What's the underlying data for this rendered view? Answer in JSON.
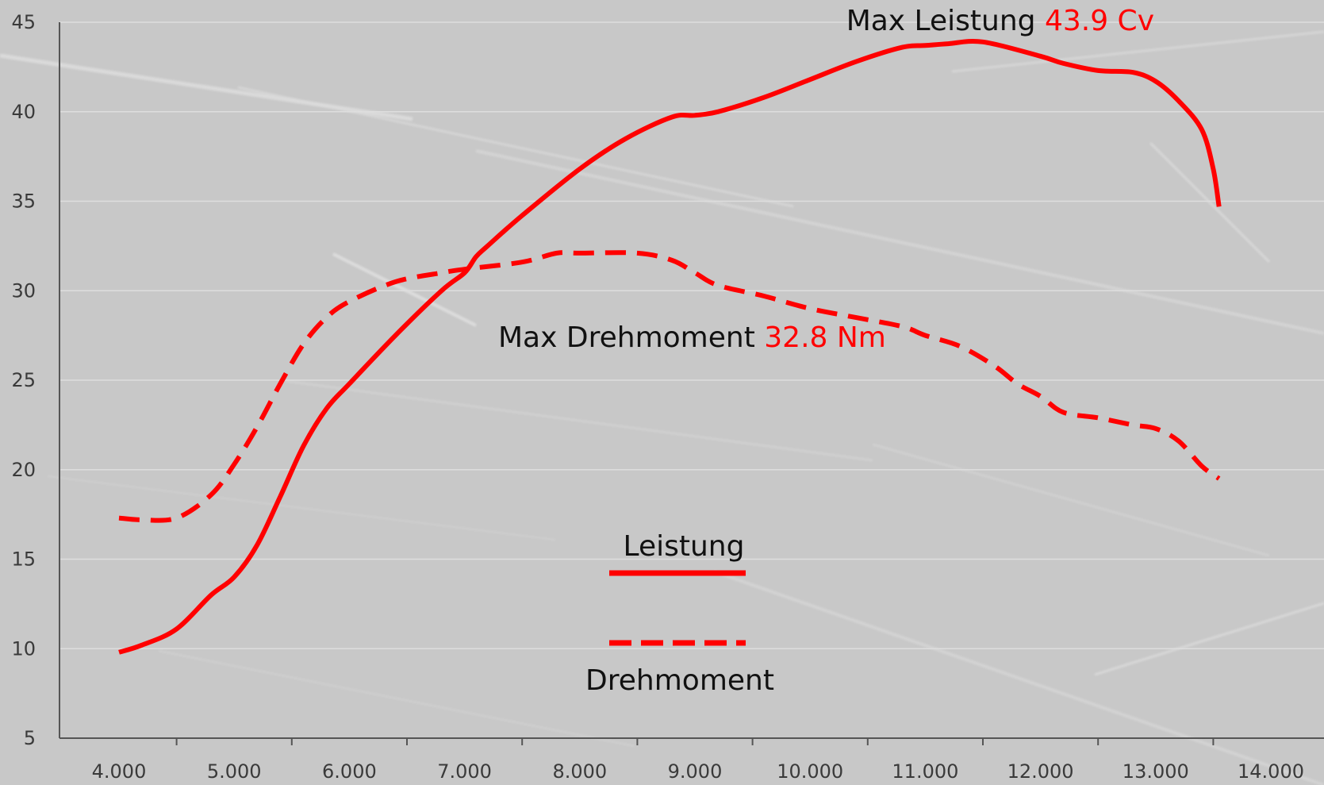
{
  "chart_data": {
    "type": "line",
    "title": "",
    "xlabel": "",
    "ylabel": "",
    "xlim": [
      3500,
      14500
    ],
    "ylim": [
      5,
      45
    ],
    "x_ticks": [
      4000,
      5000,
      6000,
      7000,
      8000,
      9000,
      10000,
      11000,
      12000,
      13000,
      14000
    ],
    "x_tick_labels": [
      "4.000",
      "5.000",
      "6.000",
      "7.000",
      "8.000",
      "9.000",
      "10.000",
      "11.000",
      "12.000",
      "13.000",
      "14.000"
    ],
    "y_ticks": [
      5,
      10,
      15,
      20,
      25,
      30,
      35,
      40,
      45
    ],
    "y_tick_labels": [
      "5",
      "10",
      "15",
      "20",
      "25",
      "30",
      "35",
      "40",
      "45"
    ],
    "grid": "horizontal",
    "colors": {
      "series": "#ff0000",
      "background": "#c9c9c9",
      "text": "#111111"
    },
    "series": [
      {
        "name": "Leistung",
        "style": "solid",
        "x": [
          4000,
          4200,
          4500,
          4800,
          5000,
          5200,
          5400,
          5600,
          5800,
          6000,
          6400,
          6800,
          7000,
          7100,
          7200,
          7500,
          8000,
          8400,
          8800,
          9000,
          9200,
          9600,
          10000,
          10400,
          10800,
          11000,
          11200,
          11500,
          12000,
          12200,
          12500,
          12800,
          13000,
          13200,
          13400,
          13500,
          13550
        ],
        "y": [
          9.8,
          10.2,
          11.1,
          13.0,
          14.0,
          15.8,
          18.5,
          21.3,
          23.4,
          24.8,
          27.5,
          30.0,
          31.0,
          31.9,
          32.5,
          34.2,
          36.8,
          38.5,
          39.7,
          39.8,
          40.0,
          40.8,
          41.8,
          42.8,
          43.6,
          43.7,
          43.8,
          43.9,
          43.1,
          42.7,
          42.3,
          42.2,
          41.7,
          40.6,
          39.0,
          36.8,
          34.7
        ]
      },
      {
        "name": "Drehmoment",
        "style": "dashed",
        "x": [
          4000,
          4200,
          4500,
          4800,
          5000,
          5200,
          5400,
          5600,
          5800,
          6000,
          6400,
          6800,
          7000,
          7500,
          7800,
          8000,
          8500,
          8800,
          9000,
          9200,
          9600,
          10000,
          10400,
          10800,
          11000,
          11300,
          11600,
          11800,
          12000,
          12200,
          12500,
          12800,
          13000,
          13200,
          13400,
          13550
        ],
        "y": [
          17.3,
          17.2,
          17.3,
          18.6,
          20.3,
          22.4,
          24.8,
          27.0,
          28.5,
          29.4,
          30.5,
          31.0,
          31.2,
          31.6,
          32.1,
          32.1,
          32.1,
          31.7,
          31.0,
          30.3,
          29.7,
          29.0,
          28.5,
          28.0,
          27.5,
          26.9,
          25.8,
          24.8,
          24.1,
          23.2,
          22.9,
          22.5,
          22.3,
          21.6,
          20.2,
          19.5
        ]
      }
    ],
    "annotations": [
      {
        "label": "Max Leistung",
        "value": "43.9 Cv"
      },
      {
        "label": "Max Drehmoment",
        "value": "32.8 Nm"
      }
    ],
    "legend": {
      "placement": "center-bottom",
      "items": [
        {
          "label": "Leistung",
          "style": "solid"
        },
        {
          "label": "Drehmoment",
          "style": "dashed"
        }
      ]
    }
  }
}
